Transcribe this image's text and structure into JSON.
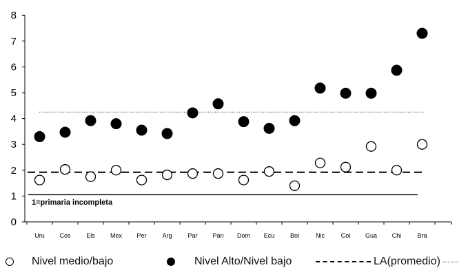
{
  "chart_data": {
    "type": "scatter",
    "categories": [
      "Uru",
      "Cos",
      "Els",
      "Mex",
      "Per",
      "Arg",
      "Par",
      "Pan",
      "Dom",
      "Ecu",
      "Bol",
      "Nic",
      "Col",
      "Gua",
      "Chi",
      "Bra"
    ],
    "series": [
      {
        "name": "Nivel medio/bajo",
        "marker": "open-circle",
        "values": [
          1.62,
          2.03,
          1.75,
          2.0,
          1.62,
          1.82,
          1.87,
          1.87,
          1.62,
          1.95,
          1.4,
          2.28,
          2.12,
          2.92,
          2.0,
          3.0
        ]
      },
      {
        "name": "Nivel Alto/Nivel bajo",
        "marker": "filled-circle",
        "values": [
          3.3,
          3.47,
          3.92,
          3.8,
          3.55,
          3.42,
          4.22,
          4.57,
          3.88,
          3.62,
          3.92,
          5.18,
          4.98,
          4.98,
          5.87,
          7.3
        ]
      }
    ],
    "reference_lines": [
      {
        "name": "LA(promedio)",
        "style": "dashed",
        "value": 1.92
      },
      {
        "name": "",
        "style": "dotted",
        "value": 4.25
      },
      {
        "name": "",
        "style": "solid",
        "value": 1.05
      }
    ],
    "annotation": "1=primaria incompleta",
    "yticks": [
      "0",
      "1",
      "2",
      "3",
      "4",
      "5",
      "6",
      "7",
      "8"
    ],
    "ylim": [
      0,
      8
    ],
    "grid": false,
    "legend_position": "bottom",
    "colors": {
      "marker": "#000000",
      "background": "#ffffff"
    }
  },
  "legend": {
    "items": [
      {
        "label": "Nivel medio/bajo"
      },
      {
        "label": "Nivel Alto/Nivel bajo"
      },
      {
        "label": "LA(promedio)"
      }
    ]
  }
}
